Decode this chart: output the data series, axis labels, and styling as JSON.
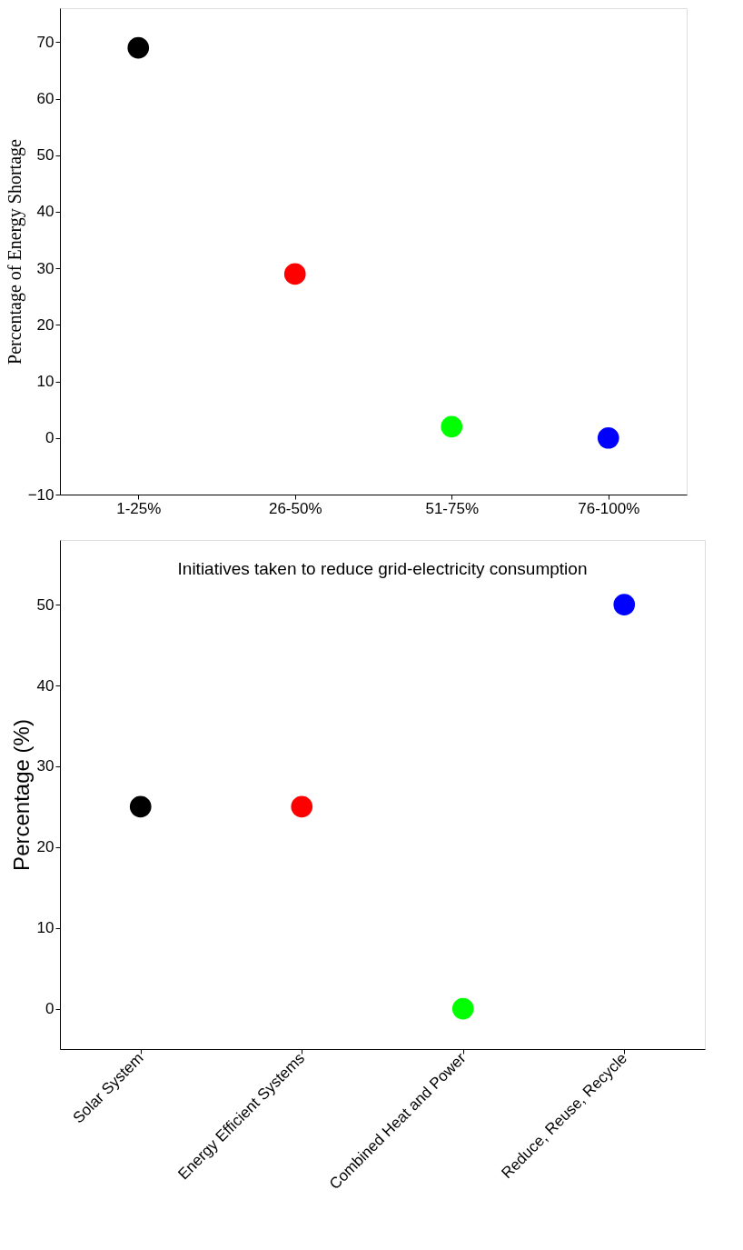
{
  "chart_data": [
    {
      "type": "scatter",
      "ylabel": "Percentage of Energy Shortage",
      "categories": [
        "1-25%",
        "26-50%",
        "51-75%",
        "76-100%"
      ],
      "values": [
        69,
        29,
        2,
        0
      ],
      "colors": [
        "#000000",
        "#ff0000",
        "#00ff00",
        "#0000ff"
      ],
      "ylim": [
        -10,
        76
      ],
      "yticks": [
        -10,
        0,
        10,
        20,
        30,
        40,
        50,
        60,
        70
      ],
      "grid": false,
      "marker": "circle"
    },
    {
      "type": "scatter",
      "title": "Initiatives taken to reduce grid-electricity consumption",
      "ylabel": "Percentage (%)",
      "categories": [
        "Solar System",
        "Energy Efficient Systems",
        "Combined Heat and Power",
        "Reduce, Reuse, Recycle"
      ],
      "values": [
        25,
        25,
        0,
        50
      ],
      "colors": [
        "#000000",
        "#ff0000",
        "#00ff00",
        "#0000ff"
      ],
      "ylim": [
        -5,
        58
      ],
      "yticks": [
        0,
        10,
        20,
        30,
        40,
        50
      ],
      "grid": false,
      "marker": "circle"
    }
  ]
}
